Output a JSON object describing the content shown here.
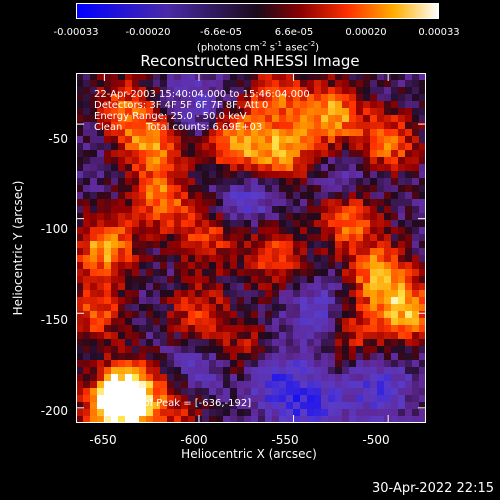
{
  "colorbar": {
    "ticks": [
      "-0.00033",
      "-0.00020",
      "-6.6e-05",
      "6.6e-05",
      "0.00020",
      "0.00033"
    ],
    "unit_prefix": "(photons cm",
    "unit_exp1": "-2",
    "unit_mid1": " s",
    "unit_exp2": "-1",
    "unit_mid2": " asec",
    "unit_exp3": "-2",
    "unit_suffix": ")",
    "range": [
      -0.00033,
      0.00033
    ]
  },
  "annotations": {
    "time_range": "22-Apr-2003 15:40:04.000 to 15:46:04.000",
    "detectors": "Detectors: 3F 4F 5F 6F 7F 8F, Att 0",
    "energy": "Energy Range: 25.0 - 50.0 keV",
    "method": "Clean",
    "total_counts": "Total counts: 6.69E+03",
    "peak": "Location of Peak = [-636,-192]"
  },
  "footer": {
    "timestamp": "30-Apr-2022 22:15"
  },
  "chart_data": {
    "type": "heatmap",
    "title": "Reconstructed RHESSI Image",
    "xlabel": "Heliocentric X (arcsec)",
    "ylabel": "Heliocentric Y (arcsec)",
    "xlim": [
      -665,
      -480
    ],
    "ylim": [
      -208,
      -23
    ],
    "xticks": [
      -650,
      -600,
      -550,
      -500
    ],
    "yticks": [
      -50,
      -100,
      -150,
      -200
    ],
    "x_tick_labels": [
      "-650",
      "-600",
      "-550",
      "-500"
    ],
    "y_tick_labels": [
      "-50",
      "-100",
      "-150",
      "-200"
    ],
    "colormap": "red-temperature (blue negative, orange/yellow positive)",
    "grid": false,
    "peak_location": [
      -636,
      -192
    ],
    "hot_regions": [
      {
        "x": -636,
        "y": -192,
        "level": 1.0
      },
      {
        "x": -645,
        "y": -200,
        "level": 0.9
      },
      {
        "x": -650,
        "y": -115,
        "level": 0.85
      },
      {
        "x": -620,
        "y": -90,
        "level": 0.7
      },
      {
        "x": -625,
        "y": -60,
        "level": 0.75
      },
      {
        "x": -580,
        "y": -60,
        "level": 0.8
      },
      {
        "x": -555,
        "y": -65,
        "level": 0.75
      },
      {
        "x": -530,
        "y": -45,
        "level": 0.85
      },
      {
        "x": -500,
        "y": -60,
        "level": 0.7
      },
      {
        "x": -560,
        "y": -35,
        "level": 0.55
      },
      {
        "x": -595,
        "y": -110,
        "level": 0.55
      },
      {
        "x": -560,
        "y": -120,
        "level": 0.6
      },
      {
        "x": -520,
        "y": -100,
        "level": 0.75
      },
      {
        "x": -505,
        "y": -130,
        "level": 0.8
      },
      {
        "x": -490,
        "y": -150,
        "level": 0.8
      },
      {
        "x": -600,
        "y": -150,
        "level": 0.55
      },
      {
        "x": -575,
        "y": -170,
        "level": 0.45
      },
      {
        "x": -520,
        "y": -160,
        "level": 0.5
      },
      {
        "x": -610,
        "y": -200,
        "level": 0.4
      },
      {
        "x": -655,
        "y": -150,
        "level": 0.6
      },
      {
        "x": -640,
        "y": -40,
        "level": 0.55
      }
    ],
    "cold_regions": [
      {
        "x": -560,
        "y": -185,
        "level": -0.55
      },
      {
        "x": -535,
        "y": -150,
        "level": -0.45
      },
      {
        "x": -575,
        "y": -90,
        "level": -0.4
      },
      {
        "x": -505,
        "y": -190,
        "level": -0.45
      },
      {
        "x": -540,
        "y": -200,
        "level": -0.5
      },
      {
        "x": -600,
        "y": -180,
        "level": -0.35
      },
      {
        "x": -520,
        "y": -80,
        "level": -0.3
      },
      {
        "x": -600,
        "y": -40,
        "level": -0.35
      }
    ]
  }
}
